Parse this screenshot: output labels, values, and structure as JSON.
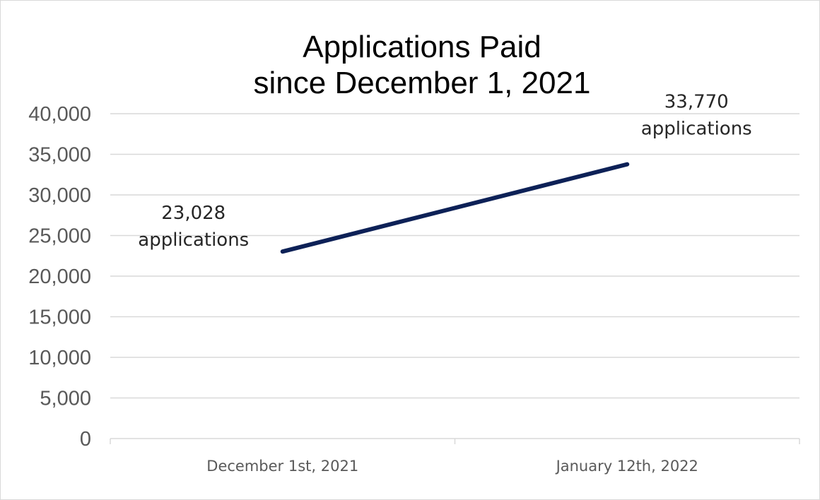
{
  "chart_data": {
    "type": "line",
    "title_lines": [
      "Applications Paid",
      "since December 1, 2021"
    ],
    "categories": [
      "December 1st, 2021",
      "January 12th, 2022"
    ],
    "series": [
      {
        "values": [
          23028,
          33770
        ],
        "color": "#0d2157"
      }
    ],
    "data_labels": [
      {
        "value": "23,028",
        "unit": "applications"
      },
      {
        "value": "33,770",
        "unit": "applications"
      }
    ],
    "y_ticks": [
      "0",
      "5,000",
      "10,000",
      "15,000",
      "20,000",
      "25,000",
      "30,000",
      "35,000",
      "40,000"
    ],
    "ylim": [
      0,
      40000
    ],
    "y_step": 5000,
    "grid": true,
    "legend": "none",
    "xlabel": "",
    "ylabel": ""
  }
}
